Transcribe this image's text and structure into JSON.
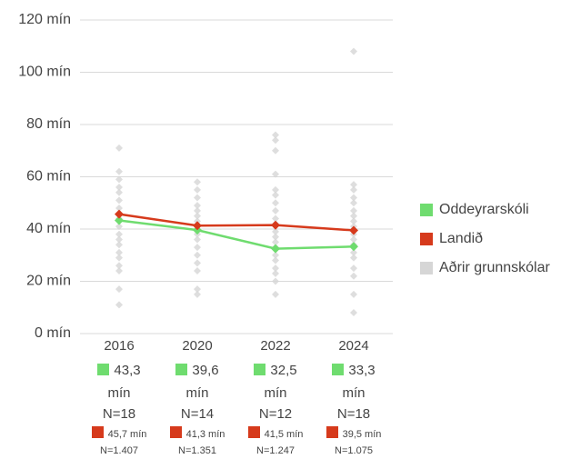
{
  "chart_data": {
    "type": "line",
    "categories": [
      "2016",
      "2020",
      "2022",
      "2024"
    ],
    "ylim": [
      0,
      120
    ],
    "yticks": [
      {
        "value": 0,
        "label": "0 mín"
      },
      {
        "value": 20,
        "label": "20 mín"
      },
      {
        "value": 40,
        "label": "40 mín"
      },
      {
        "value": 60,
        "label": "60 mín"
      },
      {
        "value": 80,
        "label": "80 mín"
      },
      {
        "value": 100,
        "label": "100 mín"
      },
      {
        "value": 120,
        "label": "120 mín"
      }
    ],
    "grid": true,
    "legend": "right",
    "series": [
      {
        "name": "Oddeyrarskóli",
        "color": "#6fdc6f",
        "values": [
          43.3,
          39.6,
          32.5,
          33.3
        ],
        "value_labels": [
          "43,3 mín",
          "39,6 mín",
          "32,5 mín",
          "33,3 mín"
        ],
        "n": [
          18,
          14,
          12,
          18
        ],
        "n_labels": [
          "N=18",
          "N=14",
          "N=12",
          "N=18"
        ]
      },
      {
        "name": "Landið",
        "color": "#d63a1c",
        "values": [
          45.7,
          41.3,
          41.5,
          39.5
        ],
        "value_labels": [
          "45,7 mín",
          "41,3 mín",
          "41,5 mín",
          "39,5 mín"
        ],
        "n": [
          1407,
          1351,
          1247,
          1075
        ],
        "n_labels": [
          "N=1.407",
          "N=1.351",
          "N=1.247",
          "N=1.075"
        ]
      },
      {
        "name": "Aðrir grunnskólar",
        "color": "#d6d6d6",
        "type": "scatter",
        "values": [
          [
            71,
            62,
            59,
            56,
            54,
            51,
            48,
            46,
            44,
            41,
            38,
            36,
            34,
            31,
            29,
            26,
            24,
            17,
            11
          ],
          [
            58,
            55,
            52,
            49,
            47,
            45,
            43,
            41,
            38,
            36,
            33,
            30,
            27,
            24,
            17,
            15
          ],
          [
            76,
            74,
            70,
            61,
            55,
            53,
            50,
            47,
            44,
            42,
            39,
            37,
            35,
            33,
            30,
            28,
            25,
            23,
            20,
            15
          ],
          [
            108,
            57,
            55,
            52,
            50,
            47,
            45,
            43,
            41,
            38,
            36,
            34,
            31,
            29,
            25,
            22,
            15,
            8
          ]
        ]
      }
    ]
  }
}
